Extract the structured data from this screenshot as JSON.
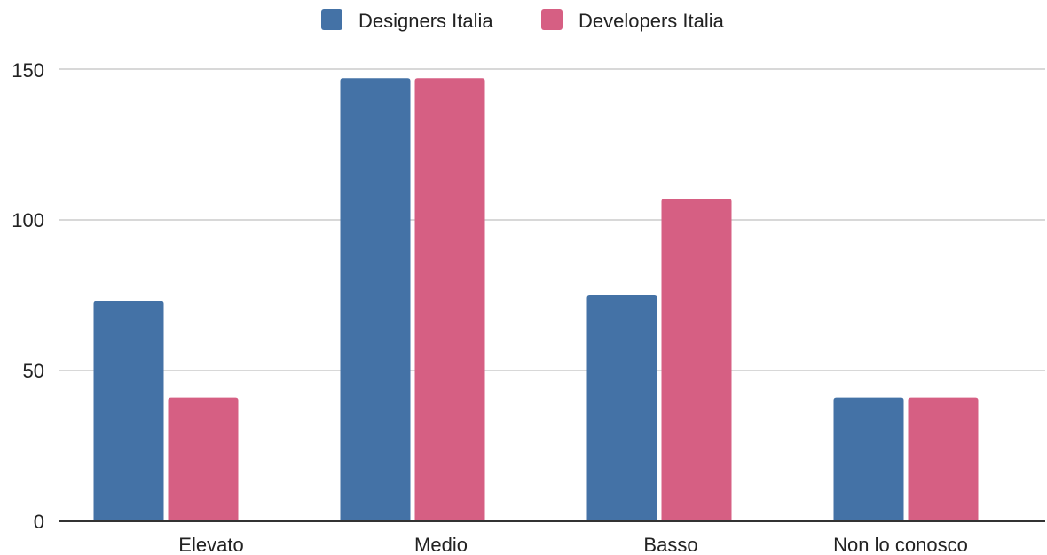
{
  "chart_data": {
    "type": "bar",
    "categories": [
      "Elevato",
      "Medio",
      "Basso",
      "Non lo conosco"
    ],
    "series": [
      {
        "name": "Designers Italia",
        "color": "#4472a6",
        "values": [
          73,
          147,
          75,
          41
        ]
      },
      {
        "name": "Developers Italia",
        "color": "#d65f83",
        "values": [
          41,
          147,
          107,
          41
        ]
      }
    ],
    "y_ticks": [
      "0",
      "50",
      "100",
      "150"
    ],
    "ylim": [
      0,
      150
    ],
    "grid": true,
    "legend": "top-center",
    "xlabel": "",
    "ylabel": ""
  }
}
